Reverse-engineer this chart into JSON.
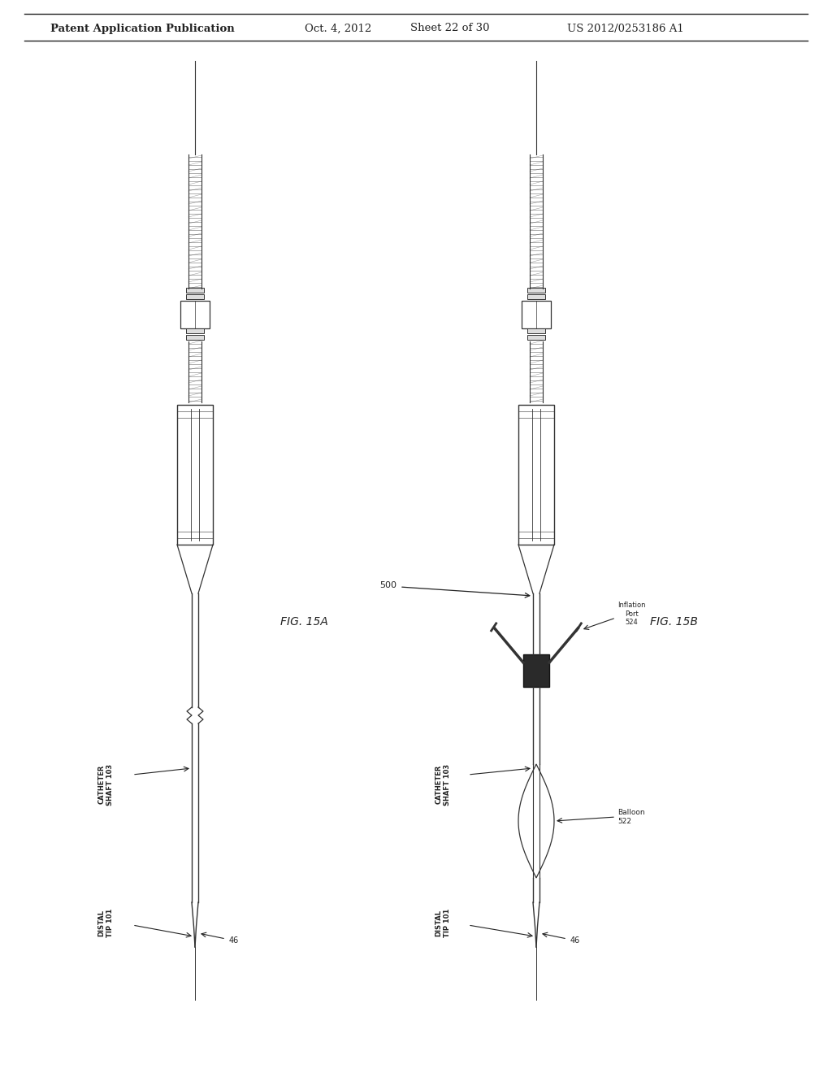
{
  "background_color": "#ffffff",
  "header_text": "Patent Application Publication",
  "header_date": "Oct. 4, 2012",
  "header_sheet": "Sheet 22 of 30",
  "header_patent": "US 2012/0253186 A1",
  "fig15a_label": "FIG. 15A",
  "fig15b_label": "FIG. 15B",
  "text_color": "#222222",
  "line_color": "#333333",
  "gray_fill": "#bbbbbb",
  "light_gray": "#dddddd",
  "dark_fill": "#444444"
}
